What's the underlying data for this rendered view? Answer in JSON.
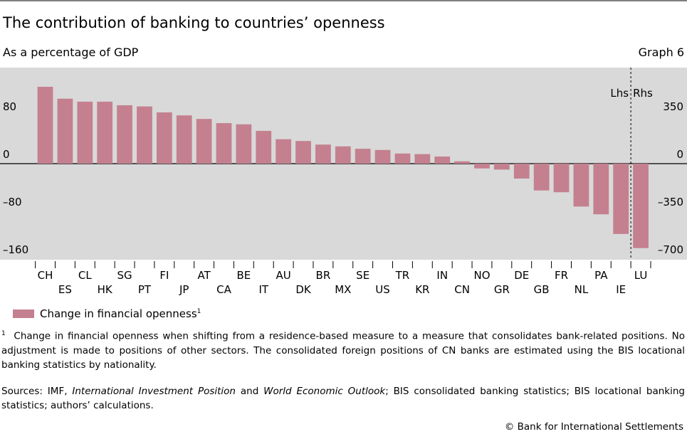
{
  "chart_data": {
    "type": "bar",
    "title": "The contribution of banking to countries’ openness",
    "subtitle": "As a percentage of GDP",
    "graph_label": "Graph 6",
    "left_axis_label": "Lhs",
    "right_axis_label": "Rhs",
    "categories": [
      "CH",
      "ES",
      "CL",
      "HK",
      "SG",
      "PT",
      "FI",
      "JP",
      "AT",
      "CA",
      "BE",
      "IT",
      "AU",
      "DK",
      "BR",
      "MX",
      "SE",
      "US",
      "TR",
      "KR",
      "IN",
      "CN",
      "NO",
      "GR",
      "DE",
      "GB",
      "FR",
      "NL",
      "PA",
      "IE",
      "LU"
    ],
    "series": [
      {
        "name": "Change in financial openness",
        "color": "#c4808f",
        "values": [
          129,
          109,
          104,
          104,
          98,
          96,
          86,
          81,
          75,
          68,
          66,
          55,
          41,
          38,
          32,
          29,
          25,
          23,
          17,
          16,
          12,
          4,
          -8,
          -10,
          -25,
          -45,
          -48,
          -72,
          -85,
          -118,
          null
        ]
      },
      {
        "color": "#c4808f",
        "axis": "y2",
        "values": [
          null,
          null,
          null,
          null,
          null,
          null,
          null,
          null,
          null,
          null,
          null,
          null,
          null,
          null,
          null,
          null,
          null,
          null,
          null,
          null,
          null,
          null,
          null,
          null,
          null,
          null,
          null,
          null,
          null,
          null,
          -620
        ]
      }
    ],
    "legend_footnote_marker": "1",
    "ylim": [
      -160,
      160
    ],
    "yticks": [
      {
        "value": -160,
        "label": "–160"
      },
      {
        "value": -80,
        "label": "–80"
      },
      0,
      80
    ],
    "y2lim": [
      -700,
      700
    ],
    "y2ticks": [
      {
        "value": -700,
        "label": "–700"
      },
      {
        "value": -350,
        "label": "–350"
      },
      0,
      350
    ],
    "footnote": {
      "marker": "1",
      "text": "Change in financial openness when shifting from a residence-based measure to a measure that consolidates bank-related positions. No adjustment is made to positions of other sectors. The consolidated foreign positions of CN banks are estimated using the BIS locational banking statistics by nationality."
    },
    "sources": [
      {
        "text": "Sources: IMF, "
      },
      {
        "text": "International Investment Position",
        "italic": true
      },
      {
        "text": " and "
      },
      {
        "text": "World Economic Outlook",
        "italic": true
      },
      {
        "text": "; BIS consolidated banking statistics; BIS locational banking statistics; authors’ calculations."
      }
    ],
    "copyright": "© Bank for International Settlements"
  }
}
